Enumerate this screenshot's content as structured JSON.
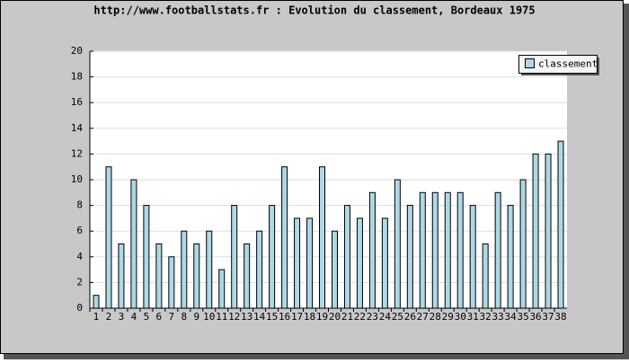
{
  "chart_data": {
    "type": "bar",
    "title": "http://www.footballstats.fr : Evolution du classement, Bordeaux 1975",
    "categories": [
      1,
      2,
      3,
      4,
      5,
      6,
      7,
      8,
      9,
      10,
      11,
      12,
      13,
      14,
      15,
      16,
      17,
      18,
      19,
      20,
      21,
      22,
      23,
      24,
      25,
      26,
      27,
      28,
      29,
      30,
      31,
      32,
      33,
      34,
      35,
      36,
      37,
      38
    ],
    "series": [
      {
        "name": "classement",
        "color": "#add8e6",
        "values": [
          1,
          11,
          5,
          10,
          8,
          5,
          4,
          6,
          5,
          6,
          3,
          8,
          5,
          6,
          8,
          11,
          7,
          7,
          11,
          6,
          8,
          7,
          9,
          7,
          10,
          8,
          9,
          9,
          9,
          9,
          8,
          5,
          9,
          8,
          10,
          12,
          12,
          13
        ]
      }
    ],
    "ylim": [
      0,
      20
    ],
    "yticks": [
      0,
      2,
      4,
      6,
      8,
      10,
      12,
      14,
      16,
      18,
      20
    ],
    "grid": true,
    "legend": "top-right"
  }
}
